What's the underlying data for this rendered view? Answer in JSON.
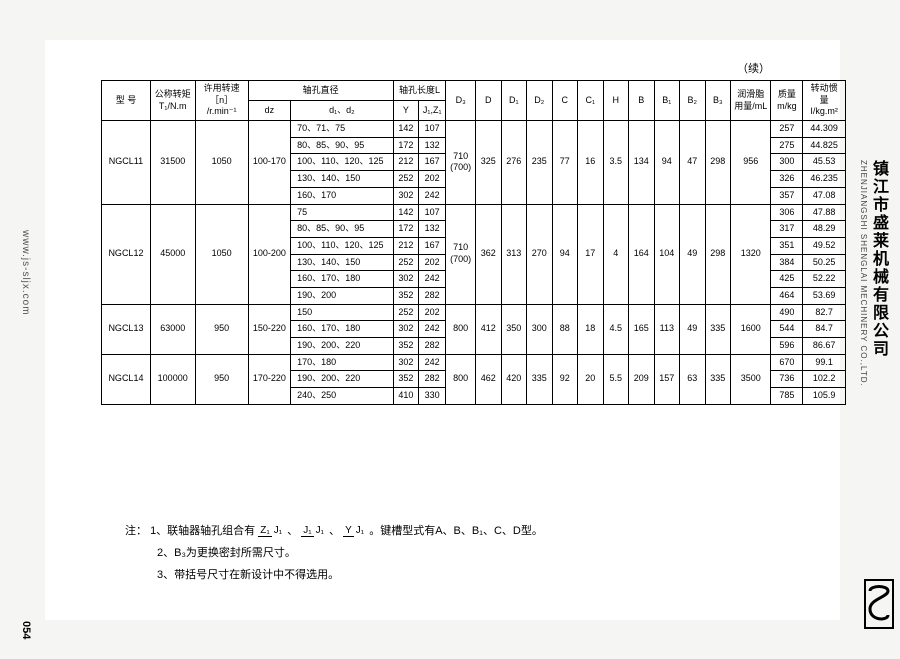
{
  "continued": "（续）",
  "headers": {
    "model": "型 号",
    "torque": "公称转矩\nT₁/N.m",
    "speed": "许用转速［n］\n/r.min⁻¹",
    "bore_dia": "轴孔直径",
    "bore_len": "轴孔长度L",
    "dz": "dz",
    "d1d2": "d₁、d₂",
    "Y": "Y",
    "J1Z1": "J₁,Z₁",
    "D3": "D₃",
    "D": "D",
    "D1": "D₁",
    "D2": "D₂",
    "C": "C",
    "C1": "C₁",
    "H": "H",
    "B": "B",
    "B1": "B₁",
    "B2": "B₂",
    "B3": "B₃",
    "grease": "润滑脂\n用量/mL",
    "mass": "质量\nm/kg",
    "inertia": "转动惯量\nI/kg.m²"
  },
  "groups": [
    {
      "model": "NGCL11",
      "torque": "31500",
      "speed": "1050",
      "dz": "100-170",
      "D3": "710",
      "D3b": "(700)",
      "D": "325",
      "D1": "276",
      "D2": "235",
      "C": "77",
      "C1": "16",
      "H": "3.5",
      "B": "134",
      "B1": "94",
      "B2": "47",
      "B3": "298",
      "grease": "956",
      "rows": [
        {
          "d": "70、71、75",
          "Y": "142",
          "JZ": "107",
          "m": "257",
          "I": "44.309"
        },
        {
          "d": "80、85、90、95",
          "Y": "172",
          "JZ": "132",
          "m": "275",
          "I": "44.825"
        },
        {
          "d": "100、110、120、125",
          "Y": "212",
          "JZ": "167",
          "m": "300",
          "I": "45.53"
        },
        {
          "d": "130、140、150",
          "Y": "252",
          "JZ": "202",
          "m": "326",
          "I": "46.235"
        },
        {
          "d": "160、170",
          "Y": "302",
          "JZ": "242",
          "m": "357",
          "I": "47.08"
        }
      ]
    },
    {
      "model": "NGCL12",
      "torque": "45000",
      "speed": "1050",
      "dz": "100-200",
      "D3": "710",
      "D3b": "(700)",
      "D": "362",
      "D1": "313",
      "D2": "270",
      "C": "94",
      "C1": "17",
      "H": "4",
      "B": "164",
      "B1": "104",
      "B2": "49",
      "B3": "298",
      "grease": "1320",
      "rows": [
        {
          "d": "75",
          "Y": "142",
          "JZ": "107",
          "m": "306",
          "I": "47.88"
        },
        {
          "d": "80、85、90、95",
          "Y": "172",
          "JZ": "132",
          "m": "317",
          "I": "48.29"
        },
        {
          "d": "100、110、120、125",
          "Y": "212",
          "JZ": "167",
          "m": "351",
          "I": "49.52"
        },
        {
          "d": "130、140、150",
          "Y": "252",
          "JZ": "202",
          "m": "384",
          "I": "50.25"
        },
        {
          "d": "160、170、180",
          "Y": "302",
          "JZ": "242",
          "m": "425",
          "I": "52.22"
        },
        {
          "d": "190、200",
          "Y": "352",
          "JZ": "282",
          "m": "464",
          "I": "53.69"
        }
      ]
    },
    {
      "model": "NGCL13",
      "torque": "63000",
      "speed": "950",
      "dz": "150-220",
      "D3": "800",
      "D3b": "",
      "D": "412",
      "D1": "350",
      "D2": "300",
      "C": "88",
      "C1": "18",
      "H": "4.5",
      "B": "165",
      "B1": "113",
      "B2": "49",
      "B3": "335",
      "grease": "1600",
      "rows": [
        {
          "d": "150",
          "Y": "252",
          "JZ": "202",
          "m": "490",
          "I": "82.7"
        },
        {
          "d": "160、170、180",
          "Y": "302",
          "JZ": "242",
          "m": "544",
          "I": "84.7"
        },
        {
          "d": "190、200、220",
          "Y": "352",
          "JZ": "282",
          "m": "596",
          "I": "86.67"
        }
      ]
    },
    {
      "model": "NGCL14",
      "torque": "100000",
      "speed": "950",
      "dz": "170-220",
      "D3": "800",
      "D3b": "",
      "D": "462",
      "D1": "420",
      "D2": "335",
      "C": "92",
      "C1": "20",
      "H": "5.5",
      "B": "209",
      "B1": "157",
      "B2": "63",
      "B3": "335",
      "grease": "3500",
      "rows": [
        {
          "d": "170、180",
          "Y": "302",
          "JZ": "242",
          "m": "670",
          "I": "99.1"
        },
        {
          "d": "190、200、220",
          "Y": "352",
          "JZ": "282",
          "m": "736",
          "I": "102.2"
        },
        {
          "d": "240、250",
          "Y": "410",
          "JZ": "330",
          "m": "785",
          "I": "105.9"
        }
      ]
    }
  ],
  "notes": {
    "prefix": "注：",
    "n1a": "1、联轴器轴孔组合有 ",
    "n1b": " 。键槽型式有A、B、B₁、C、D型。",
    "n2": "2、B₃为更换密封所需尺寸。",
    "n3": "3、带括号尺寸在新设计中不得选用。",
    "f1t": "Z₁",
    "f1b": "J₁",
    "f2t": "J₁",
    "f2b": "J₁",
    "f3t": "Y",
    "f3b": "J₁"
  },
  "side": {
    "url": "www.js-sljx.com",
    "page": "054",
    "cn": "镇江市盛莱机械有限公司",
    "en": "ZHENJIANGSHI SHENGLAI MECHINERY CO.,LTD."
  }
}
